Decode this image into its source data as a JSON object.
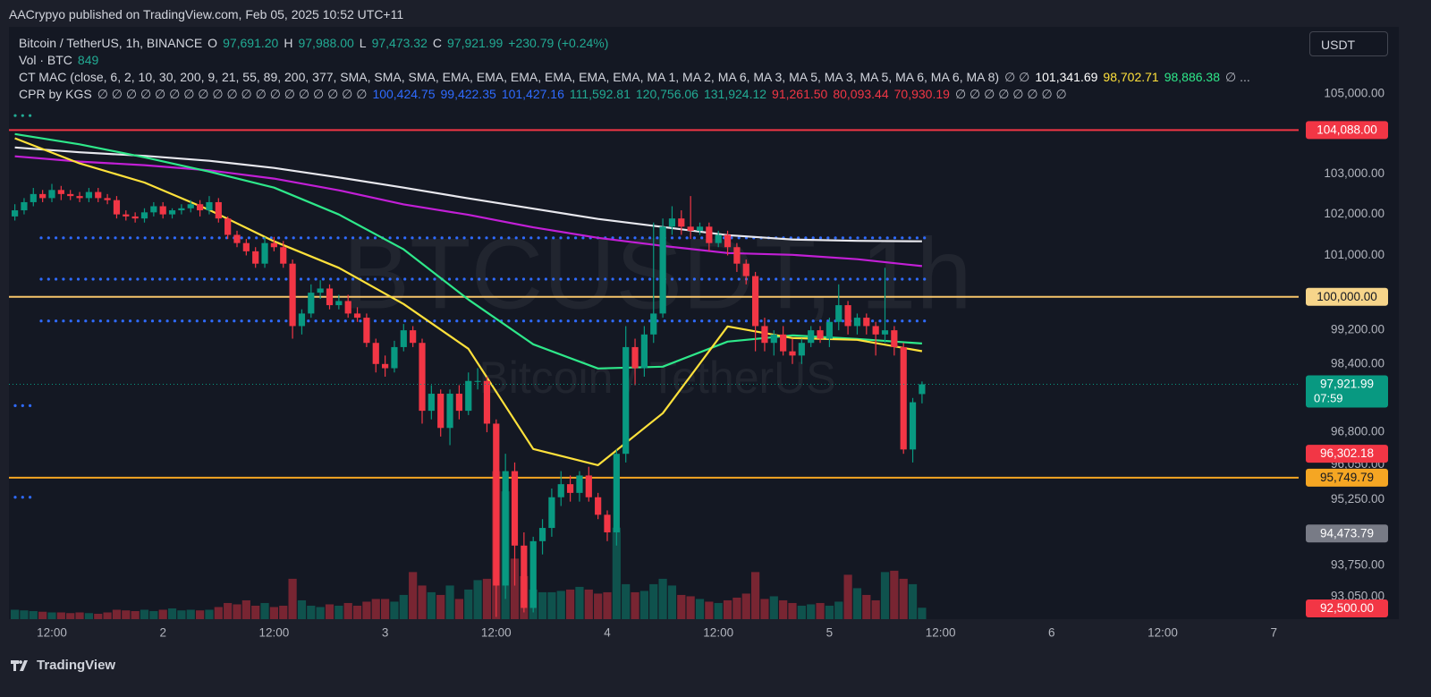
{
  "header": {
    "publisher": "AACrypyo published on TradingView.com, Feb 05, 2025 10:52 UTC+11",
    "currency": "USDT",
    "brand": "TradingView",
    "lines": [
      [
        {
          "text": "Bitcoin / TetherUS, 1h, BINANCE",
          "color": "#d1d4dc"
        },
        {
          "text": "O",
          "color": "#d1d4dc"
        },
        {
          "text": "97,691.20",
          "color": "#22ab94"
        },
        {
          "text": "H",
          "color": "#d1d4dc"
        },
        {
          "text": "97,988.00",
          "color": "#22ab94"
        },
        {
          "text": "L",
          "color": "#d1d4dc"
        },
        {
          "text": "97,473.32",
          "color": "#22ab94"
        },
        {
          "text": "C",
          "color": "#d1d4dc"
        },
        {
          "text": "97,921.99",
          "color": "#22ab94"
        },
        {
          "text": "+230.79 (+0.24%)",
          "color": "#22ab94"
        }
      ],
      [
        {
          "text": "Vol · BTC",
          "color": "#d1d4dc"
        },
        {
          "text": "849",
          "color": "#22ab94"
        }
      ],
      [
        {
          "text": "CT MAC (close, 6, 2, 10, 30, 200, 9, 21, 55, 89, 200, 377, SMA, SMA, SMA, EMA, EMA, EMA, EMA, EMA, EMA, MA 1, MA 2, MA 6, MA 3, MA 5, MA 3, MA 5, MA 6, MA 6, MA 8)",
          "color": "#d1d4dc"
        },
        {
          "text": "∅ ∅",
          "color": "#b2b5be"
        },
        {
          "text": "101,341.69",
          "color": "#ffffff"
        },
        {
          "text": "98,702.71",
          "color": "#ffe13b"
        },
        {
          "text": "98,886.38",
          "color": "#2ee88a"
        },
        {
          "text": "∅ ...",
          "color": "#b2b5be"
        }
      ],
      [
        {
          "text": "CPR by KGS",
          "color": "#d1d4dc"
        },
        {
          "text": "∅ ∅ ∅ ∅ ∅ ∅ ∅ ∅ ∅ ∅ ∅ ∅ ∅ ∅ ∅ ∅ ∅ ∅ ∅",
          "color": "#b2b5be"
        },
        {
          "text": "100,424.75",
          "color": "#2f6bff"
        },
        {
          "text": "99,422.35",
          "color": "#2f6bff"
        },
        {
          "text": "101,427.16",
          "color": "#2f6bff"
        },
        {
          "text": "111,592.81",
          "color": "#22ab94"
        },
        {
          "text": "120,756.06",
          "color": "#22ab94"
        },
        {
          "text": "131,924.12",
          "color": "#22ab94"
        },
        {
          "text": "91,261.50",
          "color": "#f23645"
        },
        {
          "text": "80,093.44",
          "color": "#f23645"
        },
        {
          "text": "70,930.19",
          "color": "#f23645"
        },
        {
          "text": "∅ ∅ ∅ ∅ ∅ ∅ ∅ ∅",
          "color": "#b2b5be"
        }
      ]
    ]
  },
  "chart_data": {
    "type": "candlestick",
    "watermark": "BTCUSDT, 1h",
    "watermark_sub": "Bitcoin / TetherUS",
    "log_scale": true,
    "grid": false,
    "up_color": "#089981",
    "down_color": "#f23645",
    "ylim": [
      92550,
      106700
    ],
    "yticks": [
      {
        "value": 105000,
        "label": "105,000.00"
      },
      {
        "value": 103000,
        "label": "103,000.00"
      },
      {
        "value": 102000,
        "label": "102,000.00"
      },
      {
        "value": 101000,
        "label": "101,000.00"
      },
      {
        "value": 99200,
        "label": "99,200.00"
      },
      {
        "value": 98400,
        "label": "98,400.00"
      },
      {
        "value": 96800,
        "label": "96,800.00"
      },
      {
        "value": 96050,
        "label": "96,050.00"
      },
      {
        "value": 95250,
        "label": "95,250.00"
      },
      {
        "value": 93750,
        "label": "93,750.00"
      },
      {
        "value": 93050,
        "label": "93,050.00"
      }
    ],
    "xtick_labels": [
      "12:00",
      "2",
      "12:00",
      "3",
      "12:00",
      "4",
      "12:00",
      "5",
      "12:00",
      "6",
      "12:00",
      "7"
    ],
    "open": [
      101950,
      102100,
      102300,
      102500,
      102400,
      102600,
      102500,
      102450,
      102400,
      102550,
      102400,
      102350,
      102000,
      101950,
      101900,
      102050,
      102200,
      102000,
      102100,
      102150,
      102250,
      102100,
      102300,
      101900,
      101500,
      101300,
      101100,
      100800,
      101300,
      101200,
      100800,
      99300,
      99600,
      100100,
      100200,
      99800,
      99900,
      99600,
      99500,
      98900,
      98400,
      98300,
      98800,
      99200,
      98900,
      97300,
      97700,
      96900,
      97700,
      97300,
      98000,
      98000,
      97000,
      93300,
      95900,
      94200,
      92800,
      94300,
      94600,
      95300,
      95600,
      95400,
      95800,
      95300,
      94900,
      94500,
      96300,
      98800,
      98300,
      99100,
      99600,
      101700,
      101900,
      101700,
      101600,
      101700,
      101300,
      101500,
      101200,
      100800,
      100500,
      99300,
      98900,
      99100,
      98700,
      98600,
      98900,
      99200,
      99000,
      99400,
      99800,
      99300,
      99500,
      99300,
      99100,
      99200,
      98800,
      96400,
      97691.2
    ],
    "high": [
      102250,
      102400,
      102650,
      102600,
      102750,
      102700,
      102600,
      102550,
      102650,
      102650,
      102500,
      102450,
      102100,
      102050,
      102150,
      102300,
      102300,
      102150,
      102250,
      102350,
      102350,
      102450,
      102400,
      101950,
      101600,
      101400,
      101200,
      101450,
      101450,
      101350,
      100900,
      99700,
      100300,
      100400,
      100300,
      100050,
      100050,
      99750,
      99600,
      99000,
      98600,
      98950,
      99350,
      99300,
      99000,
      97900,
      97800,
      97800,
      97900,
      98200,
      98300,
      98100,
      97100,
      96300,
      96100,
      94500,
      94400,
      94800,
      95500,
      95900,
      95800,
      95900,
      96000,
      95400,
      95000,
      96400,
      99300,
      99000,
      99300,
      101800,
      101900,
      102200,
      102100,
      102450,
      101800,
      101800,
      101600,
      101600,
      101300,
      100900,
      100600,
      99500,
      99200,
      99300,
      99000,
      99000,
      99300,
      99300,
      99500,
      100300,
      99900,
      99600,
      99600,
      99400,
      100700,
      99300,
      98900,
      97600,
      97988
    ],
    "low": [
      101850,
      102000,
      102200,
      102300,
      102300,
      102350,
      102350,
      102300,
      102300,
      102300,
      102250,
      101900,
      101850,
      101800,
      101800,
      101950,
      101900,
      101900,
      102000,
      102050,
      101950,
      102000,
      101800,
      101400,
      101200,
      101000,
      100700,
      100700,
      101100,
      100700,
      99000,
      99100,
      99500,
      99950,
      99700,
      99700,
      99500,
      99400,
      98800,
      98200,
      98100,
      98200,
      98700,
      98800,
      97000,
      97100,
      96700,
      96500,
      97100,
      97200,
      97800,
      96800,
      92600,
      93000,
      93300,
      92700,
      92700,
      94000,
      94400,
      95100,
      95200,
      95200,
      95200,
      94800,
      94300,
      94200,
      96100,
      97900,
      98100,
      98900,
      99500,
      101500,
      101500,
      101400,
      101500,
      101100,
      101200,
      101000,
      100600,
      100300,
      98700,
      98700,
      98600,
      98600,
      98400,
      98400,
      98800,
      98900,
      98800,
      99200,
      99100,
      99100,
      99100,
      98600,
      98900,
      98600,
      96300,
      96100,
      97473.32
    ],
    "close": [
      102100,
      102300,
      102500,
      102400,
      102600,
      102500,
      102450,
      102400,
      102550,
      102400,
      102350,
      102000,
      101950,
      101900,
      102050,
      102200,
      102000,
      102100,
      102150,
      102250,
      102100,
      102300,
      101900,
      101500,
      101300,
      101100,
      100800,
      101300,
      101200,
      100800,
      99300,
      99600,
      100100,
      100200,
      99800,
      99900,
      99600,
      99500,
      98900,
      98400,
      98300,
      98800,
      99200,
      98900,
      97300,
      97700,
      96900,
      97700,
      97300,
      98000,
      98000,
      97000,
      93300,
      95900,
      94200,
      92800,
      94300,
      94600,
      95300,
      95600,
      95400,
      95800,
      95300,
      94900,
      94500,
      96300,
      98800,
      98300,
      99100,
      99600,
      101700,
      101900,
      101700,
      101600,
      101700,
      101300,
      101500,
      101200,
      100800,
      100500,
      99300,
      98900,
      99100,
      98700,
      98600,
      98900,
      99200,
      99000,
      99400,
      99800,
      99300,
      99500,
      99300,
      99100,
      99200,
      98800,
      96400,
      97500,
      97921.99
    ],
    "volume": [
      700,
      650,
      600,
      550,
      500,
      500,
      450,
      500,
      450,
      400,
      500,
      700,
      650,
      600,
      700,
      600,
      700,
      800,
      650,
      700,
      650,
      700,
      900,
      1200,
      1100,
      1400,
      1000,
      1200,
      900,
      1000,
      3000,
      1400,
      1000,
      900,
      1100,
      1000,
      1200,
      1000,
      1300,
      1500,
      1500,
      1300,
      1800,
      3500,
      2500,
      2000,
      1800,
      2500,
      1500,
      2200,
      2900,
      3000,
      11000,
      9500,
      4500,
      3200,
      2200,
      2000,
      2000,
      2100,
      2200,
      2400,
      2200,
      1900,
      2000,
      6800,
      2600,
      2000,
      2100,
      2600,
      3000,
      2500,
      1800,
      1700,
      1500,
      1300,
      1200,
      1400,
      1600,
      1900,
      3500,
      1500,
      1700,
      1400,
      1200,
      1000,
      1100,
      1200,
      1000,
      1300,
      3300,
      2300,
      1800,
      1400,
      3500,
      3600,
      3000,
      2600,
      849
    ],
    "volume_lim": [
      0,
      13300
    ],
    "ma_series": [
      {
        "color": "#e8e8ee",
        "values": [
          103654,
          103532,
          103443,
          103321,
          103144,
          102910,
          102657,
          102393,
          102141,
          101889,
          101692,
          101494,
          101386,
          101353,
          101341.69
        ]
      },
      {
        "color": "#c21fd6",
        "values": [
          103432,
          103301,
          103214,
          103084,
          102881,
          102592,
          102246,
          101990,
          101683,
          101428,
          101232,
          101058,
          101014,
          100908,
          100741
        ]
      },
      {
        "color": "#2ee88a",
        "values": [
          103989,
          103732,
          103409,
          103054,
          102657,
          101997,
          101147,
          99935,
          98867,
          98295,
          98337,
          98930,
          99079,
          98993,
          98886.38
        ]
      },
      {
        "color": "#ffe13b",
        "values": [
          103883,
          103258,
          102783,
          102110,
          101342,
          100701,
          99828,
          98761,
          96411,
          96038,
          97244,
          99292,
          99016,
          98973,
          98702.71
        ]
      }
    ],
    "levels": [
      {
        "value": 104088,
        "color": "#f23645"
      },
      {
        "value": 100000,
        "color": "#f7c56b"
      },
      {
        "value": 95749.79,
        "color": "#f5a623"
      }
    ],
    "cpr_levels": [
      {
        "value": 101427.16,
        "color": "#2f6bff"
      },
      {
        "value": 100424.75,
        "color": "#2f6bff"
      },
      {
        "value": 99422.35,
        "color": "#2f6bff"
      }
    ],
    "short_levels": [
      {
        "value": 104450,
        "color": "#22ab94"
      },
      {
        "value": 97420,
        "color": "#2f6bff"
      },
      {
        "value": 95300,
        "color": "#2f6bff"
      }
    ],
    "price_labels": [
      {
        "value": 104088,
        "label": "104,088.00",
        "color": "#f23645",
        "text_color": "#ffffff"
      },
      {
        "value": 100000,
        "label": "100,000.00",
        "color": "#f7d58a",
        "text_color": "#131722"
      },
      {
        "value": 97921.99,
        "label": "97,921.99",
        "sub": "07:59",
        "color": "#089981",
        "text_color": "#ffffff"
      },
      {
        "value": 96302.18,
        "label": "96,302.18",
        "color": "#f23645",
        "text_color": "#ffffff"
      },
      {
        "value": 95749.79,
        "label": "95,749.79",
        "color": "#f5a623",
        "text_color": "#131722"
      },
      {
        "value": 94473.79,
        "label": "94,473.79",
        "color": "#787b86",
        "text_color": "#ffffff"
      },
      {
        "value": 92500,
        "label": "92,500.00",
        "color": "#f23645",
        "text_color": "#ffffff"
      }
    ]
  }
}
